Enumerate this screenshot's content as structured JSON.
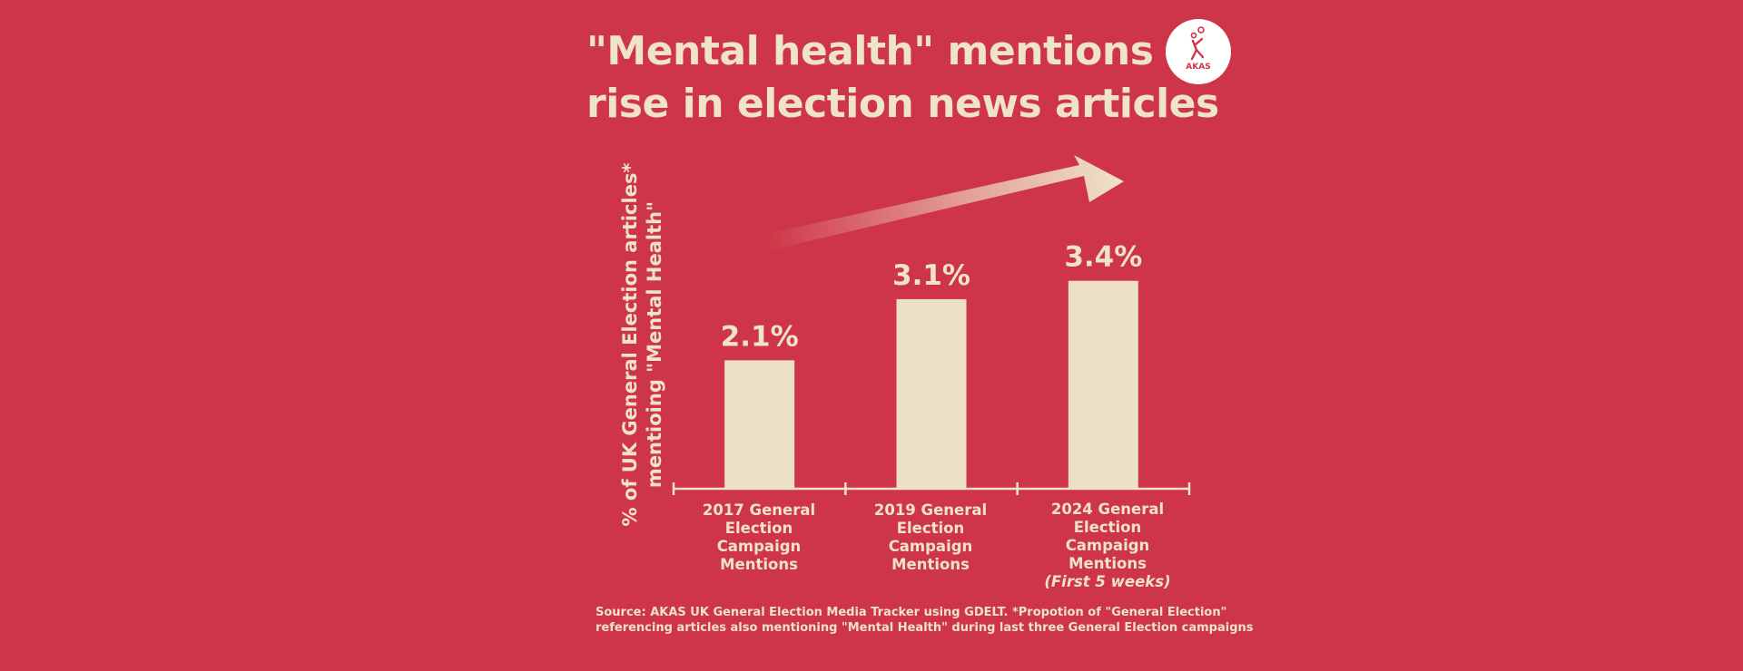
{
  "colors": {
    "background": "#cf3548",
    "foreground": "#efe3c8",
    "bar": "#ece1c7",
    "logo_circle": "#ffffff"
  },
  "title": {
    "line1": "\"Mental health\" mentions",
    "line2": "rise in election news articles"
  },
  "logo": {
    "text": "AKAS"
  },
  "trend_arrow": "arrow-up-right-icon",
  "chart_data": {
    "type": "bar",
    "title": "\"Mental health\" mentions rise in election news articles",
    "ylabel": [
      "% of UK  General Election articles*",
      "mentioing \"Mental Health\""
    ],
    "xlabel": "",
    "ylim": [
      0,
      4.3
    ],
    "grid": false,
    "categories": [
      {
        "lines": [
          "2017 General",
          "Election",
          "Campaign",
          "Mentions"
        ],
        "note": ""
      },
      {
        "lines": [
          "2019 General",
          "Election",
          "Campaign",
          "Mentions"
        ],
        "note": ""
      },
      {
        "lines": [
          "2024 General",
          "Election",
          "Campaign",
          "Mentions"
        ],
        "note": "(First 5 weeks)"
      }
    ],
    "values": [
      2.1,
      3.1,
      3.4
    ],
    "data_labels": [
      "2.1%",
      "3.1%",
      "3.4%"
    ]
  },
  "source": {
    "line1": "Source: AKAS UK General Election Media Tracker using GDELT. *Propotion of \"General Election\"",
    "line2": "referencing articles also mentioning \"Mental Health\" during last three General Election campaigns"
  }
}
